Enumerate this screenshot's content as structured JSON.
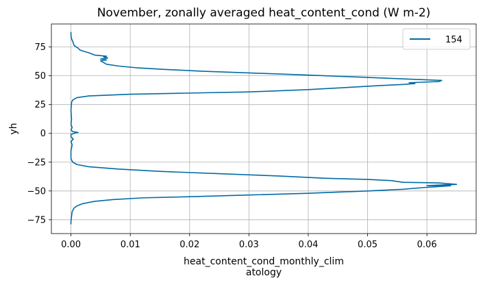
{
  "chart_data": {
    "type": "line",
    "title": "November, zonally averaged heat_content_cond (W m-2)",
    "xlabel_lines": [
      "heat_content_cond_monthly_clim",
      "atology"
    ],
    "ylabel": "yh",
    "xlim": [
      -0.0033,
      0.0683
    ],
    "ylim": [
      -87,
      95
    ],
    "xticks": [
      0.0,
      0.01,
      0.02,
      0.03,
      0.04,
      0.05,
      0.06
    ],
    "xtick_labels": [
      "0.00",
      "0.01",
      "0.02",
      "0.03",
      "0.04",
      "0.05",
      "0.06"
    ],
    "yticks": [
      -75,
      -50,
      -25,
      0,
      25,
      50,
      75
    ],
    "ytick_labels": [
      "−75",
      "−50",
      "−25",
      "0",
      "25",
      "50",
      "75"
    ],
    "grid": true,
    "legend": {
      "position": "top-right",
      "entries": [
        "154"
      ]
    },
    "series": [
      {
        "name": "154",
        "color": "#006ba4",
        "points": [
          [
            0.0,
            -79.0
          ],
          [
            0.0,
            -76.0
          ],
          [
            0.0001,
            -72.0
          ],
          [
            0.0002,
            -68.0
          ],
          [
            0.0005,
            -65.0
          ],
          [
            0.001,
            -63.0
          ],
          [
            0.002,
            -61.0
          ],
          [
            0.004,
            -59.0
          ],
          [
            0.007,
            -57.5
          ],
          [
            0.012,
            -56.0
          ],
          [
            0.02,
            -55.0
          ],
          [
            0.03,
            -53.5
          ],
          [
            0.04,
            -52.0
          ],
          [
            0.05,
            -50.0
          ],
          [
            0.056,
            -48.5
          ],
          [
            0.0595,
            -47.0
          ],
          [
            0.064,
            -45.5
          ],
          [
            0.06,
            -45.3
          ],
          [
            0.065,
            -44.3
          ],
          [
            0.062,
            -43.0
          ],
          [
            0.056,
            -42.5
          ],
          [
            0.054,
            -41.0
          ],
          [
            0.05,
            -40.0
          ],
          [
            0.043,
            -39.0
          ],
          [
            0.035,
            -37.0
          ],
          [
            0.025,
            -35.0
          ],
          [
            0.015,
            -33.0
          ],
          [
            0.008,
            -31.0
          ],
          [
            0.003,
            -29.0
          ],
          [
            0.001,
            -27.0
          ],
          [
            0.0003,
            -25.0
          ],
          [
            0.0,
            -22.0
          ],
          [
            0.0,
            -15.0
          ],
          [
            0.0002,
            -10.0
          ],
          [
            0.0,
            -7.0
          ],
          [
            0.0004,
            -5.0
          ],
          [
            0.0,
            -3.0
          ],
          [
            0.0,
            -1.0
          ],
          [
            0.0008,
            0.5
          ],
          [
            0.0012,
            0.8
          ],
          [
            0.0003,
            1.5
          ],
          [
            0.0,
            3.0
          ],
          [
            0.0002,
            5.0
          ],
          [
            0.0,
            8.0
          ],
          [
            0.0001,
            12.0
          ],
          [
            0.0,
            20.0
          ],
          [
            0.0001,
            27.0
          ],
          [
            0.0003,
            29.0
          ],
          [
            0.001,
            31.0
          ],
          [
            0.003,
            32.5
          ],
          [
            0.01,
            34.0
          ],
          [
            0.02,
            35.0
          ],
          [
            0.03,
            36.0
          ],
          [
            0.04,
            38.0
          ],
          [
            0.047,
            40.0
          ],
          [
            0.052,
            41.5
          ],
          [
            0.056,
            42.5
          ],
          [
            0.058,
            43.3
          ],
          [
            0.057,
            44.0
          ],
          [
            0.062,
            45.0
          ],
          [
            0.0625,
            46.0
          ],
          [
            0.06,
            46.5
          ],
          [
            0.055,
            47.5
          ],
          [
            0.048,
            49.0
          ],
          [
            0.038,
            51.0
          ],
          [
            0.03,
            52.5
          ],
          [
            0.022,
            54.0
          ],
          [
            0.016,
            55.5
          ],
          [
            0.011,
            57.0
          ],
          [
            0.008,
            58.5
          ],
          [
            0.006,
            60.0
          ],
          [
            0.0055,
            61.5
          ],
          [
            0.005,
            63.0
          ],
          [
            0.006,
            63.8
          ],
          [
            0.005,
            64.5
          ],
          [
            0.0062,
            65.5
          ],
          [
            0.0055,
            66.5
          ],
          [
            0.006,
            67.0
          ],
          [
            0.004,
            68.0
          ],
          [
            0.003,
            70.0
          ],
          [
            0.002,
            71.5
          ],
          [
            0.0015,
            72.5
          ],
          [
            0.0012,
            74.0
          ],
          [
            0.0006,
            76.0
          ],
          [
            0.0004,
            78.0
          ],
          [
            0.0003,
            80.0
          ],
          [
            0.0001,
            82.0
          ],
          [
            0.0,
            85.0
          ],
          [
            0.0,
            88.0
          ]
        ]
      }
    ]
  }
}
